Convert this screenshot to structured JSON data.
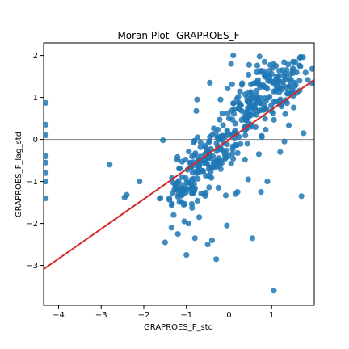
{
  "chart_data": {
    "type": "scatter",
    "title": "Moran Plot -GRAPROES_F",
    "xlabel": "GRAPROES_F_std",
    "ylabel": "GRAPROES_F_lag_std",
    "xlim": [
      -4.35,
      2.0
    ],
    "ylim": [
      -3.95,
      2.3
    ],
    "xticks": [
      -4,
      -3,
      -2,
      -1,
      0,
      1
    ],
    "yticks": [
      -3,
      -2,
      -1,
      0,
      1,
      2
    ],
    "xtick_labels": [
      "−4",
      "−3",
      "−2",
      "−1",
      "0",
      "1"
    ],
    "ytick_labels": [
      "−3",
      "−2",
      "−1",
      "0",
      "1",
      "2"
    ],
    "grid": false,
    "reference_lines": {
      "x": 0,
      "y": 0,
      "color": "#808080"
    },
    "regression_line": {
      "slope": 0.71,
      "intercept": 0.0,
      "color": "#d62728"
    },
    "point_color": "#1f77b4",
    "point_opacity": 0.85,
    "cluster_groups": [
      {
        "cx": 1.0,
        "cy": 1.2,
        "sx": 0.45,
        "sy": 0.35,
        "n": 140
      },
      {
        "cx": 0.45,
        "cy": 0.7,
        "sx": 0.35,
        "sy": 0.35,
        "n": 60
      },
      {
        "cx": -0.2,
        "cy": -0.2,
        "sx": 0.35,
        "sy": 0.3,
        "n": 80
      },
      {
        "cx": -0.75,
        "cy": -0.8,
        "sx": 0.3,
        "sy": 0.3,
        "n": 70
      },
      {
        "cx": -1.1,
        "cy": -1.2,
        "sx": 0.25,
        "sy": 0.25,
        "n": 40
      }
    ],
    "points": [
      [
        -4.3,
        0.87
      ],
      [
        -4.3,
        0.35
      ],
      [
        -4.3,
        0.1
      ],
      [
        -4.3,
        -0.4
      ],
      [
        -4.3,
        -0.55
      ],
      [
        -4.3,
        -0.8
      ],
      [
        -4.3,
        -1.0
      ],
      [
        -4.3,
        -1.4
      ],
      [
        -2.8,
        -0.6
      ],
      [
        -2.45,
        -1.38
      ],
      [
        -2.4,
        -1.32
      ],
      [
        -2.1,
        -1.0
      ],
      [
        -1.55,
        -0.02
      ],
      [
        -1.5,
        -2.45
      ],
      [
        -1.35,
        -2.1
      ],
      [
        -1.4,
        -1.4
      ],
      [
        -1.3,
        -1.8
      ],
      [
        -1.2,
        -2.25
      ],
      [
        -1.05,
        -1.95
      ],
      [
        -1.0,
        -2.75
      ],
      [
        -0.95,
        -2.0
      ],
      [
        -0.8,
        -2.35
      ],
      [
        -0.75,
        0.95
      ],
      [
        -0.7,
        -1.85
      ],
      [
        -0.5,
        -2.5
      ],
      [
        -0.4,
        -2.4
      ],
      [
        -0.3,
        -2.85
      ],
      [
        -0.25,
        -1.15
      ],
      [
        -0.05,
        -2.05
      ],
      [
        0.05,
        1.8
      ],
      [
        0.1,
        2.0
      ],
      [
        0.15,
        -1.3
      ],
      [
        0.2,
        -1.25
      ],
      [
        0.45,
        -0.95
      ],
      [
        0.55,
        -2.35
      ],
      [
        0.7,
        -0.35
      ],
      [
        0.75,
        -1.25
      ],
      [
        0.9,
        -1.0
      ],
      [
        1.05,
        -3.6
      ],
      [
        1.2,
        -0.3
      ],
      [
        1.3,
        -0.05
      ],
      [
        1.7,
        -1.35
      ],
      [
        1.75,
        0.15
      ],
      [
        1.95,
        1.68
      ],
      [
        1.5,
        1.85
      ],
      [
        -0.45,
        1.35
      ],
      [
        -0.2,
        0.95
      ],
      [
        0.0,
        0.5
      ],
      [
        -0.4,
        0.1
      ],
      [
        -0.2,
        0.0
      ],
      [
        0.3,
        1.3
      ],
      [
        0.85,
        1.55
      ],
      [
        1.1,
        1.75
      ],
      [
        1.25,
        1.65
      ],
      [
        0.65,
        1.6
      ]
    ]
  }
}
